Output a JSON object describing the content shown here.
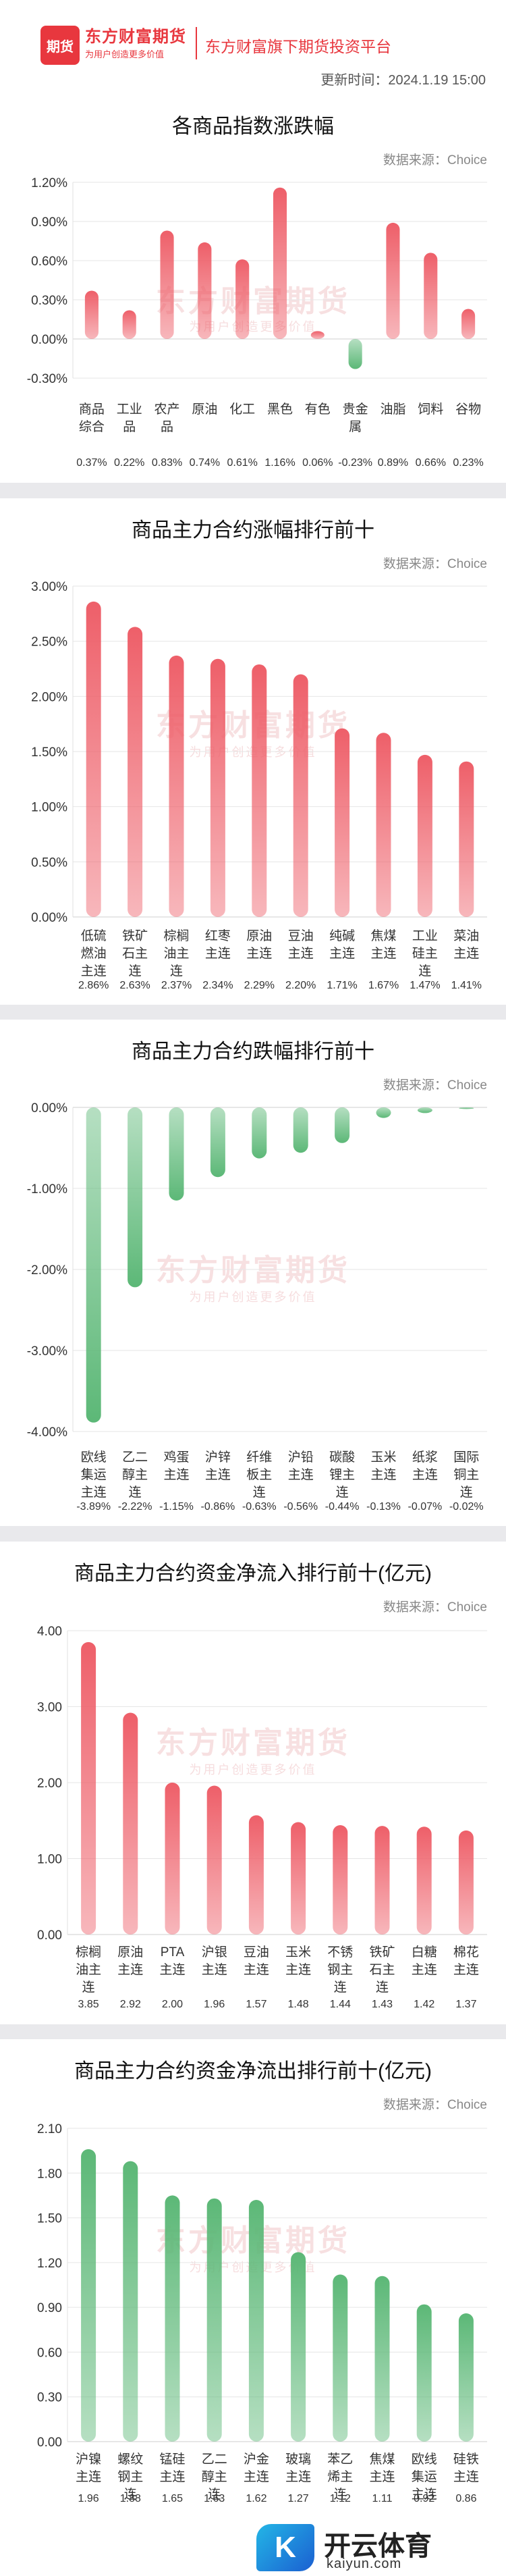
{
  "header": {
    "logo_icon_text": "期货",
    "logo_name": "东方财富期货",
    "logo_slogan": "为用户创造更多价值",
    "platform": "东方财富旗下期货投资平台",
    "update_time": "更新时间：2024.1.19 15:00"
  },
  "watermark": {
    "name": "东方财富期货",
    "slogan": "为用户创造更多价值"
  },
  "footer": {
    "mark": "K",
    "name": "开云体育",
    "url": "kaiyun.com"
  },
  "chart_data": [
    {
      "id": "chart1",
      "type": "bar",
      "title": "各商品指数涨跌幅",
      "source": "数据来源：Choice",
      "categories": [
        "商品\n综合",
        "工业\n品",
        "农产\n品",
        "原油",
        "化工",
        "黑色",
        "有色",
        "贵金\n属",
        "油脂",
        "饲料",
        "谷物"
      ],
      "values": [
        0.37,
        0.22,
        0.83,
        0.74,
        0.61,
        1.16,
        0.06,
        -0.23,
        0.89,
        0.66,
        0.23
      ],
      "value_labels": [
        "0.37%",
        "0.22%",
        "0.83%",
        "0.74%",
        "0.61%",
        "1.16%",
        "0.06%",
        "-0.23%",
        "0.89%",
        "0.66%",
        "0.23%"
      ],
      "yticks": [
        1.2,
        0.9,
        0.6,
        0.3,
        0.0,
        -0.3
      ],
      "ytick_labels": [
        "1.20%",
        "0.90%",
        "0.60%",
        "0.30%",
        "0.00%",
        "-0.30%"
      ],
      "ylim": [
        -0.3,
        1.2
      ],
      "colors": {
        "positive": "#ee5f69",
        "negative": "#5cb877"
      }
    },
    {
      "id": "chart2",
      "type": "bar",
      "title": "商品主力合约涨幅排行前十",
      "source": "数据来源：Choice",
      "categories": [
        "低硫\n燃油\n主连",
        "铁矿\n石主\n连",
        "棕榈\n油主\n连",
        "红枣\n主连",
        "原油\n主连",
        "豆油\n主连",
        "纯碱\n主连",
        "焦煤\n主连",
        "工业\n硅主\n连",
        "菜油\n主连"
      ],
      "values": [
        2.86,
        2.63,
        2.37,
        2.34,
        2.29,
        2.2,
        1.71,
        1.67,
        1.47,
        1.41
      ],
      "value_labels": [
        "2.86%",
        "2.63%",
        "2.37%",
        "2.34%",
        "2.29%",
        "2.20%",
        "1.71%",
        "1.67%",
        "1.47%",
        "1.41%"
      ],
      "yticks": [
        3.0,
        2.5,
        2.0,
        1.5,
        1.0,
        0.5,
        0.0
      ],
      "ytick_labels": [
        "3.00%",
        "2.50%",
        "2.00%",
        "1.50%",
        "1.00%",
        "0.50%",
        "0.00%"
      ],
      "ylim": [
        0,
        3.0
      ],
      "colors": {
        "positive": "#ee5f69",
        "negative": "#5cb877"
      }
    },
    {
      "id": "chart3",
      "type": "bar",
      "title": "商品主力合约跌幅排行前十",
      "source": "数据来源：Choice",
      "categories": [
        "欧线\n集运\n主连",
        "乙二\n醇主\n连",
        "鸡蛋\n主连",
        "沪锌\n主连",
        "纤维\n板主\n连",
        "沪铅\n主连",
        "碳酸\n锂主\n连",
        "玉米\n主连",
        "纸浆\n主连",
        "国际\n铜主\n连"
      ],
      "values": [
        -3.89,
        -2.22,
        -1.15,
        -0.86,
        -0.63,
        -0.56,
        -0.44,
        -0.13,
        -0.07,
        -0.02
      ],
      "value_labels": [
        "-3.89%",
        "-2.22%",
        "-1.15%",
        "-0.86%",
        "-0.63%",
        "-0.56%",
        "-0.44%",
        "-0.13%",
        "-0.07%",
        "-0.02%"
      ],
      "yticks": [
        0.0,
        -1.0,
        -2.0,
        -3.0,
        -4.0
      ],
      "ytick_labels": [
        "0.00%",
        "-1.00%",
        "-2.00%",
        "-3.00%",
        "-4.00%"
      ],
      "ylim": [
        -4.0,
        0
      ],
      "colors": {
        "positive": "#ee5f69",
        "negative": "#5cb877"
      }
    },
    {
      "id": "chart4",
      "type": "bar",
      "title": "商品主力合约资金净流入排行前十(亿元)",
      "source": "数据来源：Choice",
      "categories": [
        "棕榈\n油主\n连",
        "原油\n主连",
        "PTA\n主连",
        "沪银\n主连",
        "豆油\n主连",
        "玉米\n主连",
        "不锈\n钢主\n连",
        "铁矿\n石主\n连",
        "白糖\n主连",
        "棉花\n主连"
      ],
      "values": [
        3.85,
        2.92,
        2.0,
        1.96,
        1.57,
        1.48,
        1.44,
        1.43,
        1.42,
        1.37
      ],
      "value_labels": [
        "3.85",
        "2.92",
        "2.00",
        "1.96",
        "1.57",
        "1.48",
        "1.44",
        "1.43",
        "1.42",
        "1.37"
      ],
      "yticks": [
        4.0,
        3.0,
        2.0,
        1.0,
        0.0
      ],
      "ytick_labels": [
        "4.00",
        "3.00",
        "2.00",
        "1.00",
        "0.00"
      ],
      "ylim": [
        0,
        4.0
      ],
      "colors": {
        "positive": "#ee5f69",
        "negative": "#5cb877"
      }
    },
    {
      "id": "chart5",
      "type": "bar",
      "title": "商品主力合约资金净流出排行前十(亿元)",
      "source": "数据来源：Choice",
      "categories": [
        "沪镍\n主连",
        "螺纹\n钢主\n连",
        "锰硅\n主连",
        "乙二\n醇主\n连",
        "沪金\n主连",
        "玻璃\n主连",
        "苯乙\n烯主\n连",
        "焦煤\n主连",
        "欧线\n集运\n主连",
        "硅铁\n主连"
      ],
      "values": [
        1.96,
        1.88,
        1.65,
        1.63,
        1.62,
        1.27,
        1.12,
        1.11,
        0.92,
        0.86
      ],
      "value_labels": [
        "1.96",
        "1.88",
        "1.65",
        "1.63",
        "1.62",
        "1.27",
        "1.12",
        "1.11",
        "0.92",
        "0.86"
      ],
      "yticks": [
        2.1,
        1.8,
        1.5,
        1.2,
        0.9,
        0.6,
        0.3,
        0.0
      ],
      "ytick_labels": [
        "2.10",
        "1.80",
        "1.50",
        "1.20",
        "0.90",
        "0.60",
        "0.30",
        "0.00"
      ],
      "ylim": [
        0,
        2.1
      ],
      "colors": {
        "positive": "#5cb877",
        "negative": "#5cb877"
      }
    }
  ]
}
